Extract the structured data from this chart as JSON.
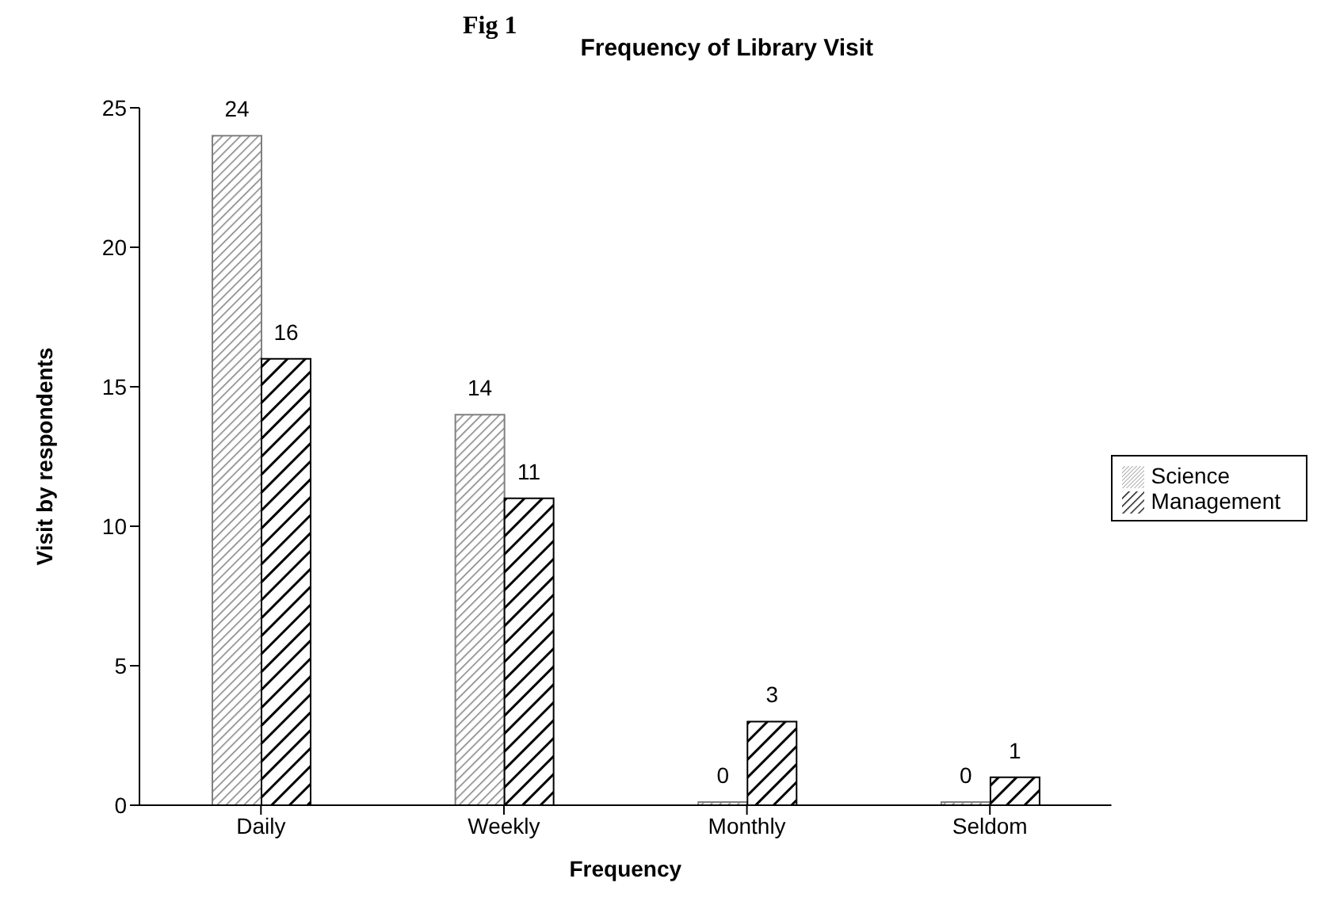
{
  "chart_data": {
    "type": "bar",
    "title": "Frequency of Library Visit",
    "annotations": [
      "Fig 1"
    ],
    "xlabel": "Frequency",
    "ylabel": "Visit by respondents",
    "categories": [
      "Daily",
      "Weekly",
      "Monthly",
      "Seldom"
    ],
    "series": [
      {
        "name": "Science",
        "color": "#808080",
        "values": [
          24,
          14,
          0,
          0
        ]
      },
      {
        "name": "Management",
        "color": "#000000",
        "values": [
          16,
          11,
          3,
          1
        ]
      }
    ],
    "ylim": [
      0,
      25
    ],
    "yticks": [
      0,
      5,
      10,
      15,
      20,
      25
    ],
    "grid": false,
    "legend": "right",
    "data_labels": true
  }
}
